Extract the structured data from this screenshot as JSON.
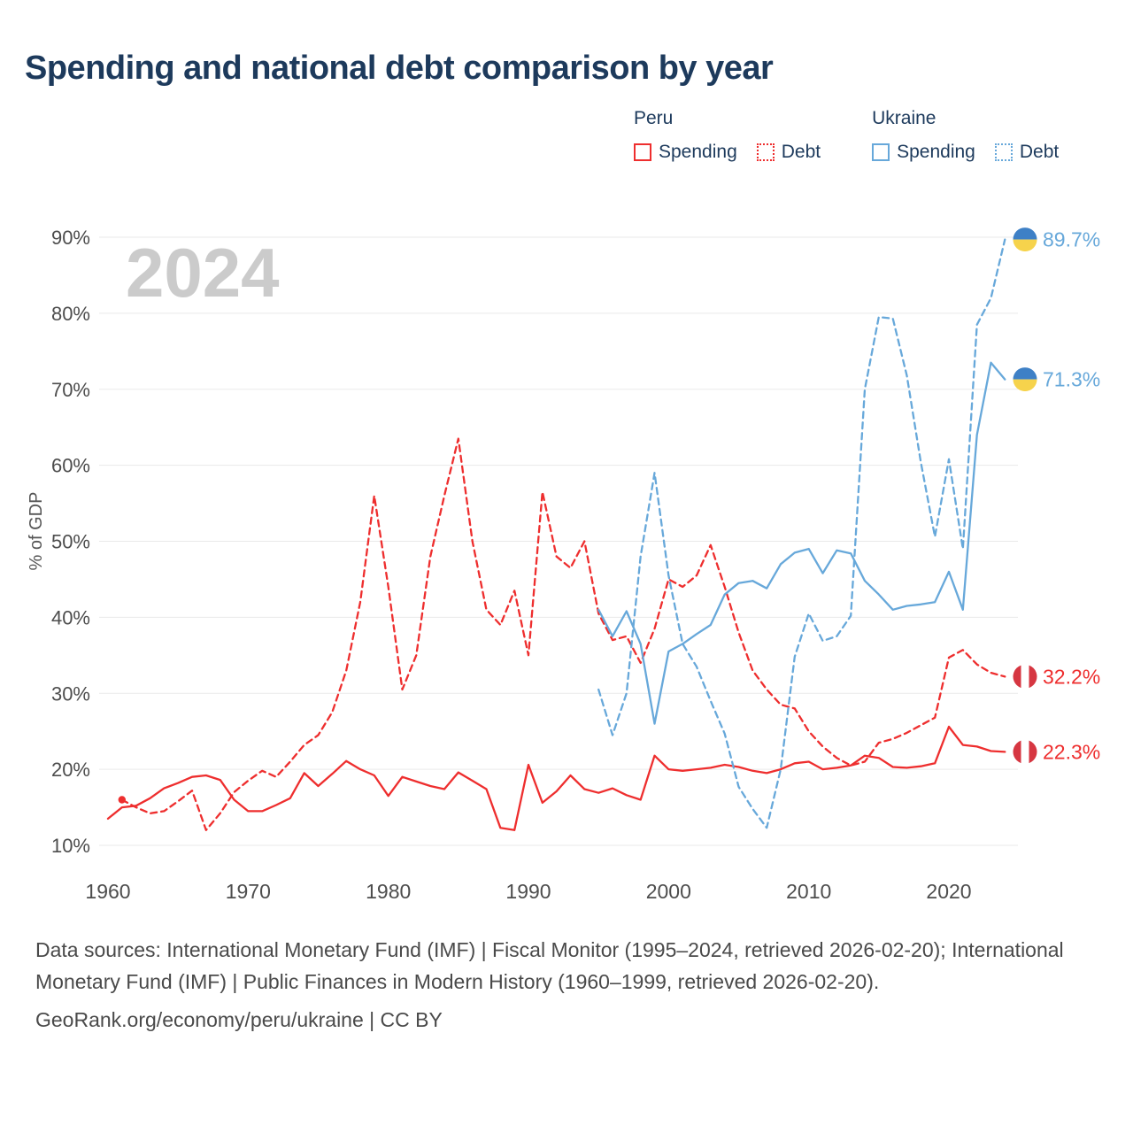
{
  "title": "Spending and national debt comparison by year",
  "watermark": "2024",
  "colors": {
    "title": "#1d3a5c",
    "peru": "#ee2e2e",
    "ukraine": "#67a8da",
    "axis_text": "#4d4d4d",
    "grid": "#eaeaea",
    "watermark": "#cbcbcb",
    "footer_text": "#4a4a4a"
  },
  "legend": {
    "groups": [
      {
        "label": "Peru",
        "items": [
          {
            "label": "Spending",
            "style": "solid",
            "color": "#ee2e2e"
          },
          {
            "label": "Debt",
            "style": "dotted",
            "color": "#ee2e2e"
          }
        ]
      },
      {
        "label": "Ukraine",
        "items": [
          {
            "label": "Spending",
            "style": "solid",
            "color": "#67a8da"
          },
          {
            "label": "Debt",
            "style": "dotted",
            "color": "#67a8da"
          }
        ]
      }
    ]
  },
  "chart_data": {
    "type": "line",
    "title": "Spending and national debt comparison by year",
    "xlabel": "",
    "ylabel": "% of GDP",
    "xlim": [
      1958,
      2026
    ],
    "ylim": [
      5,
      92
    ],
    "xticks": [
      1960,
      1970,
      1980,
      1990,
      2000,
      2010,
      2020
    ],
    "yticks": [
      10,
      20,
      30,
      40,
      50,
      60,
      70,
      80,
      90
    ],
    "y_tick_suffix": "%",
    "grid": "horizontal",
    "legend_position": "top-right",
    "flag_colors": {
      "ukraine": [
        "#3e80c6",
        "#f6d34c"
      ],
      "peru": [
        "#d63641",
        "#ffffff"
      ]
    },
    "series": [
      {
        "id": "peru-spending",
        "name": "Peru Spending",
        "country": "Peru",
        "metric": "Spending",
        "color": "#ee2e2e",
        "line": "solid",
        "flag": "peru",
        "marker_start": false,
        "end_label": "22.3%",
        "start_year": 1960,
        "values": [
          13.5,
          15.0,
          15.2,
          16.2,
          17.5,
          18.2,
          19.0,
          19.2,
          18.6,
          16.0,
          14.5,
          14.5,
          15.3,
          16.2,
          19.5,
          17.8,
          19.4,
          21.1,
          20.0,
          19.2,
          16.5,
          19.0,
          18.4,
          17.8,
          17.4,
          19.6,
          18.5,
          17.4,
          12.3,
          12.0,
          20.6,
          15.6,
          17.1,
          19.2,
          17.4,
          16.9,
          17.5,
          16.6,
          16.0,
          21.8,
          20.0,
          19.8,
          20.0,
          20.2,
          20.6,
          20.3,
          19.8,
          19.5,
          20.0,
          20.8,
          21.0,
          20.0,
          20.2,
          20.5,
          21.8,
          21.5,
          20.3,
          20.2,
          20.4,
          20.8,
          25.6,
          23.2,
          23.0,
          22.4,
          22.3
        ]
      },
      {
        "id": "peru-debt",
        "name": "Peru Debt",
        "country": "Peru",
        "metric": "Debt",
        "color": "#ee2e2e",
        "line": "dashed",
        "flag": "peru",
        "marker_start": true,
        "end_label": "32.2%",
        "start_year": 1961,
        "values": [
          16.0,
          15.0,
          14.2,
          14.5,
          15.8,
          17.2,
          12.0,
          14.2,
          17.0,
          18.5,
          19.8,
          19.0,
          21.0,
          23.2,
          24.5,
          27.5,
          33.0,
          42.0,
          56.0,
          44.0,
          30.5,
          35.0,
          48.0,
          56.0,
          63.5,
          50.0,
          41.0,
          39.0,
          43.5,
          35.0,
          56.5,
          48.0,
          46.5,
          50.0,
          40.5,
          37.0,
          37.5,
          34.0,
          38.5,
          45.0,
          44.0,
          45.5,
          49.5,
          44.0,
          38.0,
          33.0,
          30.5,
          28.5,
          28.0,
          25.0,
          23.0,
          21.5,
          20.5,
          21.0,
          23.5,
          24.0,
          24.8,
          25.8,
          26.8,
          34.7,
          35.7,
          33.8,
          32.7,
          32.2
        ]
      },
      {
        "id": "ukraine-spending",
        "name": "Ukraine Spending",
        "country": "Ukraine",
        "metric": "Spending",
        "color": "#67a8da",
        "line": "solid",
        "flag": "ukraine",
        "marker_start": false,
        "end_label": "71.3%",
        "start_year": 1995,
        "values": [
          41.0,
          37.5,
          40.8,
          36.5,
          26.0,
          35.5,
          36.5,
          37.8,
          39.0,
          43.0,
          44.5,
          44.8,
          43.8,
          47.0,
          48.5,
          49.0,
          45.8,
          48.8,
          48.4,
          44.8,
          43.0,
          41.0,
          41.5,
          41.7,
          42.0,
          46.0,
          41.0,
          64.0,
          73.5,
          71.3
        ]
      },
      {
        "id": "ukraine-debt",
        "name": "Ukraine Debt",
        "country": "Ukraine",
        "metric": "Debt",
        "color": "#67a8da",
        "line": "dashed",
        "flag": "ukraine",
        "marker_start": false,
        "end_label": "89.7%",
        "start_year": 1995,
        "values": [
          30.5,
          24.5,
          30.0,
          48.0,
          59.0,
          45.5,
          36.5,
          33.5,
          29.0,
          24.7,
          17.7,
          14.8,
          12.3,
          20.0,
          34.8,
          40.5,
          36.9,
          37.5,
          40.2,
          70.0,
          79.5,
          79.3,
          71.8,
          60.4,
          50.6,
          60.8,
          49.0,
          78.5,
          82.0,
          89.7
        ]
      }
    ]
  },
  "footer": {
    "sources": "Data sources: International Monetary Fund (IMF) | Fiscal Monitor (1995–2024, retrieved 2026-02-20); International Monetary Fund (IMF) | Public Finances in Modern History (1960–1999, retrieved 2026-02-20).",
    "attribution": "GeoRank.org/economy/peru/ukraine | CC BY"
  }
}
